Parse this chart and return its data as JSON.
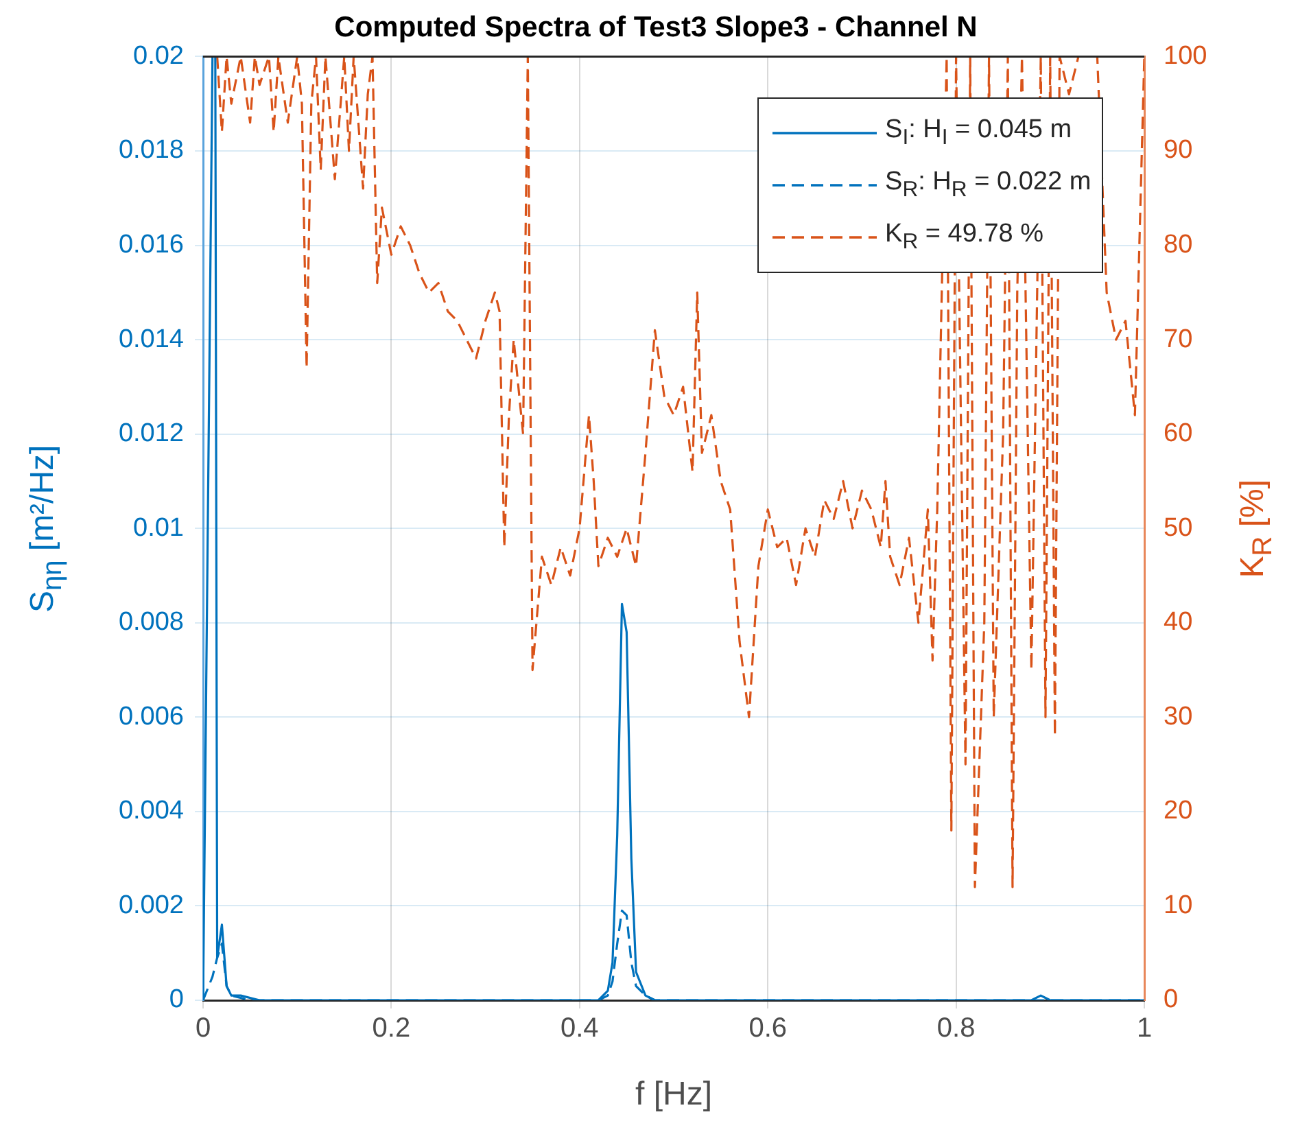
{
  "chart_data": {
    "type": "line",
    "title": "Computed Spectra of Test3 Slope3 - Channel N",
    "xlabel": "f [Hz]",
    "ylabel": "S$_{ηη}$ [m²/Hz]",
    "y2label": "K$_{R}$ [%]",
    "xlim": [
      0,
      1
    ],
    "xticks": [
      0,
      0.2,
      0.4,
      0.6,
      0.8,
      1
    ],
    "ylim": [
      0,
      0.02
    ],
    "yticks": [
      0,
      0.002,
      0.004,
      0.006,
      0.008,
      0.01,
      0.012,
      0.014,
      0.016,
      0.018,
      0.02
    ],
    "y2lim": [
      0,
      100
    ],
    "y2ticks": [
      0,
      10,
      20,
      30,
      40,
      50,
      60,
      70,
      80,
      90,
      100
    ],
    "grid": true,
    "legend": "top right",
    "marker": "none",
    "series": [
      {
        "name": "S$_{I}$: H$_{I}$ = 0.045 m",
        "color": "#0072bd",
        "line_style": "solid",
        "x": [
          0,
          0.01,
          0.013,
          0.015,
          0.02,
          0.025,
          0.03,
          0.04,
          0.06,
          0.1,
          0.2,
          0.3,
          0.4,
          0.42,
          0.43,
          0.435,
          0.44,
          0.445,
          0.45,
          0.455,
          0.46,
          0.47,
          0.48,
          0.5,
          0.6,
          0.7,
          0.8,
          0.88,
          0.89,
          0.9,
          1
        ],
        "values": [
          0,
          0.02,
          0.02,
          0.0009,
          0.0016,
          0.0003,
          0.0001,
          0.0001,
          0,
          0,
          0,
          0,
          0,
          0,
          0.0002,
          0.0008,
          0.0035,
          0.0084,
          0.0078,
          0.003,
          0.0006,
          0.0001,
          0,
          0,
          0,
          0,
          0,
          0,
          0.0001,
          0,
          0
        ]
      },
      {
        "name": "S$_{R}$: H$_{R}$ = 0.022 m",
        "color": "#0072bd",
        "line_style": "dashed",
        "x": [
          0,
          0.01,
          0.015,
          0.02,
          0.025,
          0.03,
          0.05,
          0.1,
          0.2,
          0.3,
          0.4,
          0.42,
          0.43,
          0.435,
          0.44,
          0.445,
          0.45,
          0.455,
          0.46,
          0.47,
          0.48,
          0.5,
          0.7,
          0.9,
          1
        ],
        "values": [
          0,
          0.0005,
          0.0009,
          0.0012,
          0.0003,
          0.0001,
          0,
          0,
          0,
          0,
          0,
          0,
          0.0001,
          0.0004,
          0.0012,
          0.0019,
          0.0018,
          0.0008,
          0.0003,
          0.0001,
          0,
          0,
          0,
          0,
          0
        ]
      },
      {
        "name": "K$_{R}$ = 49.78 %",
        "color": "#d95319",
        "line_style": "dashed",
        "axis": "y2",
        "x": [
          0.015,
          0.02,
          0.025,
          0.03,
          0.04,
          0.05,
          0.055,
          0.06,
          0.07,
          0.075,
          0.08,
          0.09,
          0.1,
          0.105,
          0.11,
          0.115,
          0.12,
          0.125,
          0.13,
          0.14,
          0.15,
          0.155,
          0.16,
          0.17,
          0.175,
          0.18,
          0.185,
          0.19,
          0.2,
          0.21,
          0.22,
          0.23,
          0.24,
          0.25,
          0.26,
          0.27,
          0.28,
          0.29,
          0.3,
          0.31,
          0.315,
          0.32,
          0.325,
          0.33,
          0.34,
          0.345,
          0.35,
          0.36,
          0.37,
          0.38,
          0.39,
          0.4,
          0.41,
          0.415,
          0.42,
          0.43,
          0.44,
          0.45,
          0.46,
          0.47,
          0.48,
          0.49,
          0.5,
          0.51,
          0.52,
          0.525,
          0.53,
          0.54,
          0.55,
          0.56,
          0.57,
          0.58,
          0.59,
          0.6,
          0.61,
          0.62,
          0.63,
          0.64,
          0.65,
          0.66,
          0.67,
          0.68,
          0.69,
          0.7,
          0.71,
          0.72,
          0.725,
          0.73,
          0.74,
          0.75,
          0.76,
          0.77,
          0.775,
          0.78,
          0.79,
          0.795,
          0.8,
          0.81,
          0.815,
          0.82,
          0.83,
          0.835,
          0.84,
          0.85,
          0.855,
          0.86,
          0.865,
          0.87,
          0.88,
          0.89,
          0.895,
          0.9,
          0.905,
          0.91,
          0.92,
          0.93,
          0.94,
          0.95,
          0.96,
          0.97,
          0.98,
          0.99,
          1
        ],
        "values": [
          100,
          92,
          100,
          95,
          100,
          93,
          100,
          97,
          100,
          92,
          100,
          93,
          100,
          95,
          67,
          95,
          100,
          88,
          100,
          87,
          100,
          90,
          100,
          86,
          96,
          100,
          76,
          84,
          79,
          82,
          80,
          77,
          75,
          76,
          73,
          72,
          70,
          68,
          72,
          75,
          73,
          48,
          62,
          70,
          60,
          100,
          35,
          47,
          44,
          48,
          45,
          50,
          62,
          55,
          46,
          49,
          47,
          50,
          46,
          58,
          71,
          64,
          62,
          65,
          56,
          75,
          58,
          62,
          55,
          52,
          38,
          30,
          46,
          52,
          48,
          49,
          44,
          50,
          47,
          53,
          51,
          55,
          50,
          54,
          52,
          48,
          55,
          47,
          44,
          49,
          40,
          52,
          36,
          52,
          100,
          18,
          100,
          25,
          100,
          12,
          40,
          100,
          30,
          60,
          100,
          12,
          75,
          100,
          35,
          100,
          30,
          100,
          28,
          100,
          96,
          100,
          100,
          100,
          75,
          70,
          72,
          62,
          100
        ]
      }
    ]
  }
}
